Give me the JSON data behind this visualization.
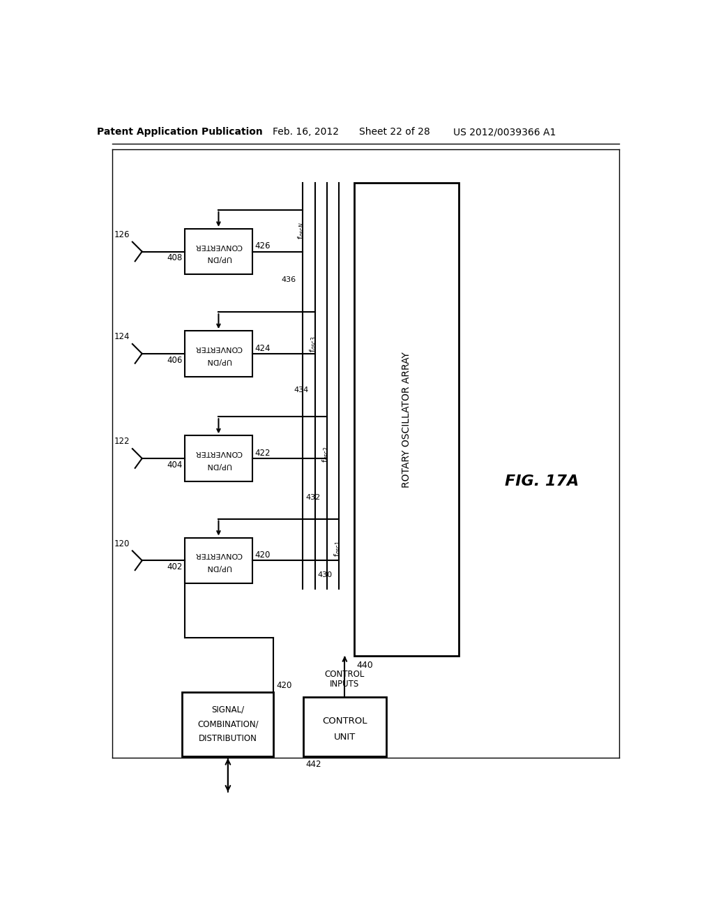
{
  "bg_color": "#ffffff",
  "line_color": "#000000",
  "header_text": "Patent Application Publication",
  "header_date": "Feb. 16, 2012",
  "header_sheet": "Sheet 22 of 28",
  "header_patent": "US 2012/0039366 A1",
  "fig_label": "FIG. 17A"
}
